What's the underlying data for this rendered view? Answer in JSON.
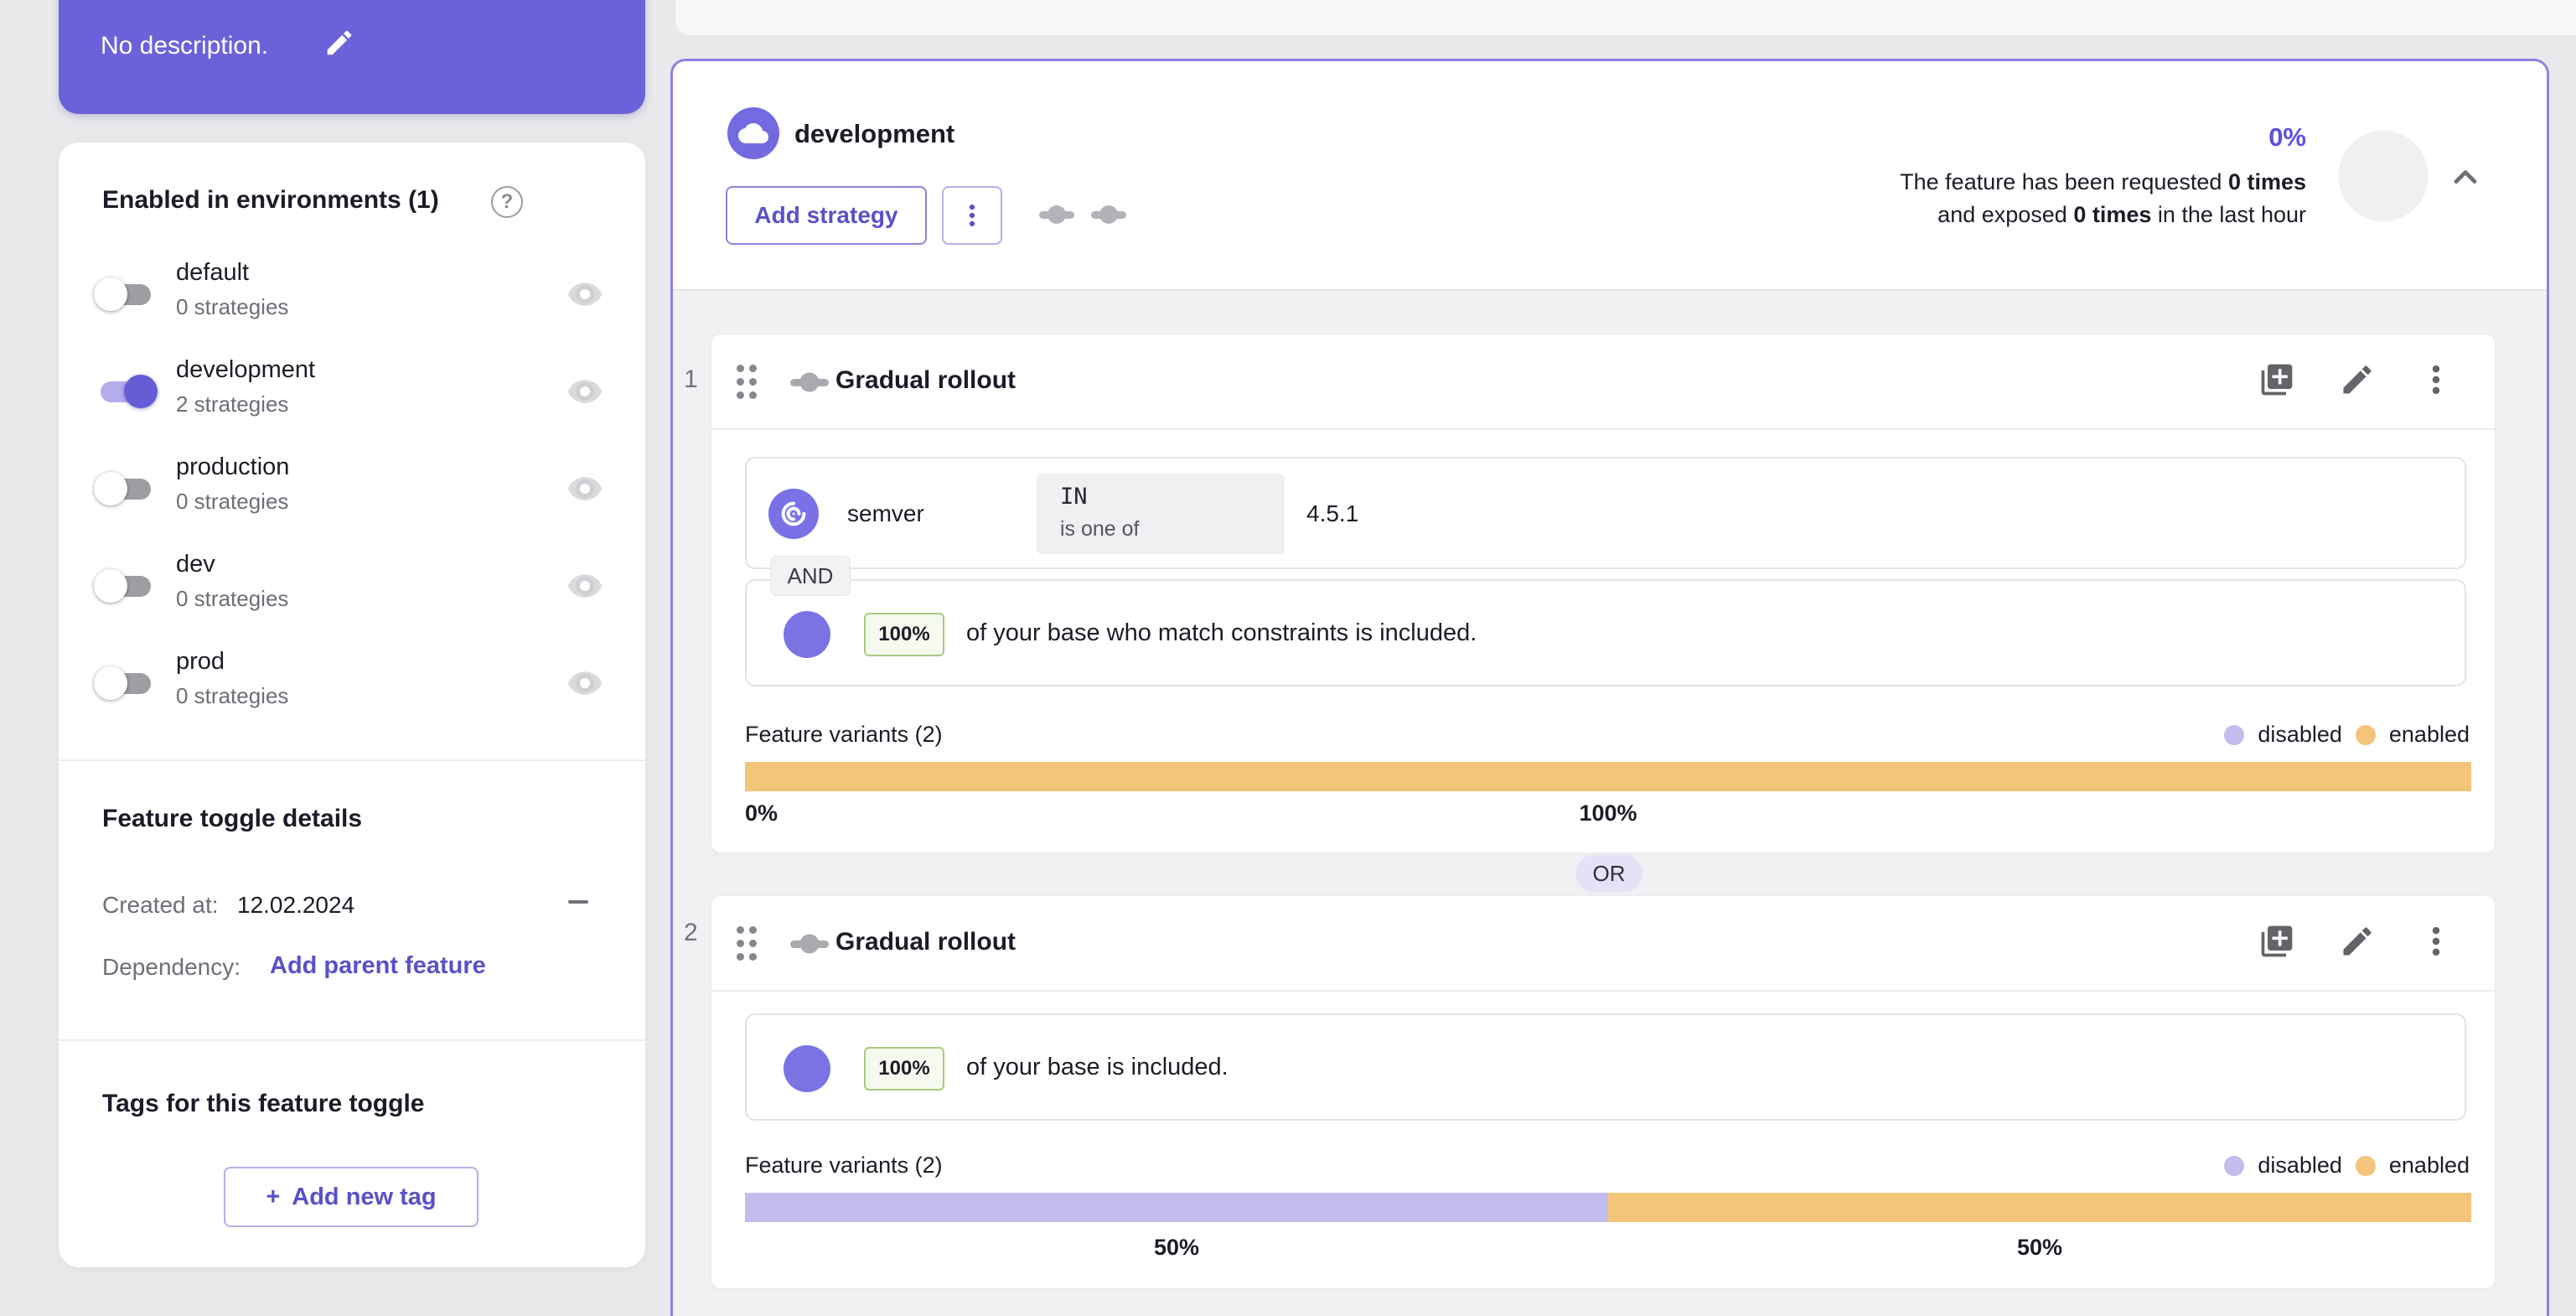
{
  "colors": {
    "accent": "#5a51c8",
    "accent_border": "#8a83e0",
    "toggle_on": "#655cd6",
    "variant_disabled": "#c3bdee",
    "variant_enabled": "#f3c47a"
  },
  "sidebar": {
    "description": {
      "text": "No description."
    },
    "environments": {
      "title": "Enabled in environments (1)",
      "items": [
        {
          "name": "default",
          "strategies": "0 strategies",
          "enabled": false
        },
        {
          "name": "development",
          "strategies": "2 strategies",
          "enabled": true
        },
        {
          "name": "production",
          "strategies": "0 strategies",
          "enabled": false
        },
        {
          "name": "dev",
          "strategies": "0 strategies",
          "enabled": false
        },
        {
          "name": "prod",
          "strategies": "0 strategies",
          "enabled": false
        }
      ]
    },
    "details": {
      "title": "Feature toggle details",
      "created_label": "Created at:",
      "created_value": "12.02.2024",
      "dependency_label": "Dependency:",
      "dependency_action": "Add parent feature"
    },
    "tags": {
      "title": "Tags for this feature toggle",
      "plus": "+",
      "add_label": "Add new tag"
    }
  },
  "main": {
    "header": {
      "environment": "development",
      "add_strategy": "Add strategy",
      "percent": "0%",
      "line1_text": "The feature has been requested ",
      "line1_bold": "0 times",
      "line2_text": "and exposed ",
      "line2_bold": "0 times",
      "line2_suffix": " in the last hour"
    },
    "or_label": "OR",
    "strategies": [
      {
        "index": "1",
        "title": "Gradual rollout",
        "constraint": {
          "context": "semver",
          "operator": "IN",
          "operator_description": "is one of",
          "values": "4.5.1"
        },
        "joiner": "AND",
        "rollout": {
          "percent": "100%",
          "description": "of your base who match constraints is included."
        },
        "variants": {
          "label": "Feature variants (2)",
          "legend": [
            {
              "label": "disabled",
              "color": "#c3bdee"
            },
            {
              "label": "enabled",
              "color": "#f3c47a"
            }
          ],
          "segments": [
            {
              "value": 100,
              "color": "#f3c47a"
            }
          ],
          "axis": [
            {
              "text": "0%",
              "at": 0
            },
            {
              "text": "100%",
              "at": 50
            }
          ]
        }
      },
      {
        "index": "2",
        "title": "Gradual rollout",
        "rollout": {
          "percent": "100%",
          "description": "of your base is included."
        },
        "variants": {
          "label": "Feature variants (2)",
          "legend": [
            {
              "label": "disabled",
              "color": "#c3bdee"
            },
            {
              "label": "enabled",
              "color": "#f3c47a"
            }
          ],
          "segments": [
            {
              "value": 50,
              "color": "#c3bdee"
            },
            {
              "value": 50,
              "color": "#f3c47a"
            }
          ],
          "axis": [
            {
              "text": "50%",
              "at": 25
            },
            {
              "text": "50%",
              "at": 75
            }
          ]
        }
      }
    ]
  }
}
